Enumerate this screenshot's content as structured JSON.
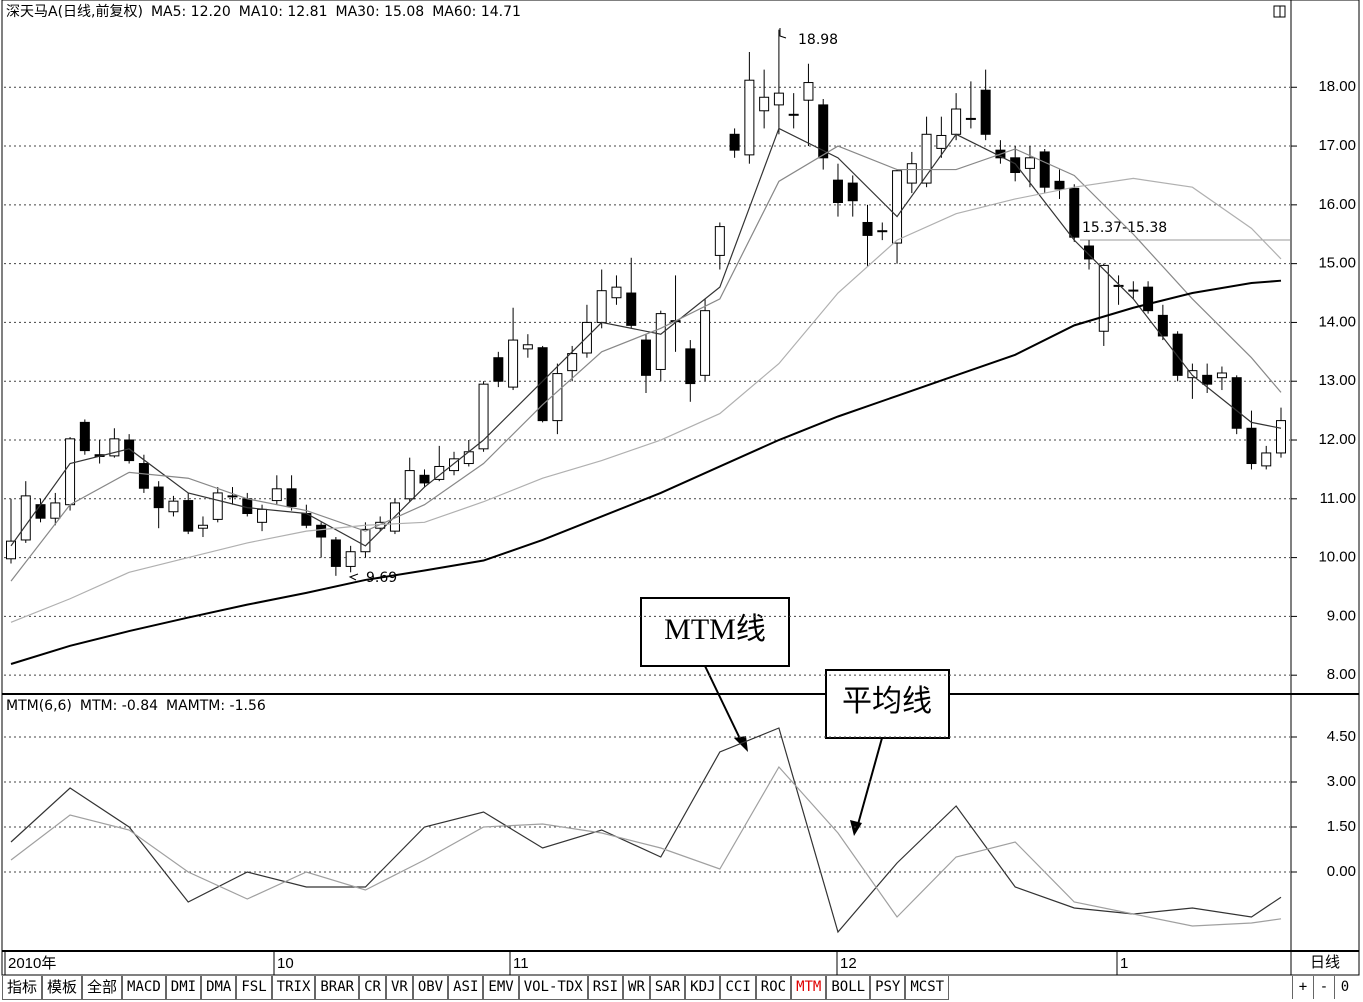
{
  "chart_data": [
    {
      "type": "candlestick",
      "title": "深天马A(日线,前复权)",
      "ylim": [
        7.68,
        19.11
      ],
      "yticks": [
        {
          "value": 8,
          "label": "8.00"
        },
        {
          "value": 9,
          "label": "9.00"
        },
        {
          "value": 10,
          "label": "10.00"
        },
        {
          "value": 11,
          "label": "11.00"
        },
        {
          "value": 12,
          "label": "12.00"
        },
        {
          "value": 13,
          "label": "13.00"
        },
        {
          "value": 14,
          "label": "14.00"
        },
        {
          "value": 15,
          "label": "15.00"
        },
        {
          "value": 16,
          "label": "16.00"
        },
        {
          "value": 17,
          "label": "17.00"
        },
        {
          "value": 18,
          "label": "18.00"
        }
      ],
      "grid": true,
      "candles": [
        [
          9.98,
          11.0,
          9.9,
          10.28
        ],
        [
          10.3,
          11.3,
          10.25,
          11.05
        ],
        [
          10.9,
          11.0,
          10.6,
          10.67
        ],
        [
          10.67,
          11.1,
          10.55,
          10.93
        ],
        [
          10.9,
          12.05,
          10.8,
          12.02
        ],
        [
          12.3,
          12.35,
          11.75,
          11.82
        ],
        [
          11.75,
          12.0,
          11.6,
          11.72
        ],
        [
          11.73,
          12.2,
          11.7,
          12.02
        ],
        [
          12.0,
          12.1,
          11.6,
          11.65
        ],
        [
          11.6,
          11.75,
          11.1,
          11.18
        ],
        [
          11.2,
          11.3,
          10.5,
          10.85
        ],
        [
          10.78,
          11.05,
          10.7,
          10.96
        ],
        [
          10.97,
          11.1,
          10.4,
          10.45
        ],
        [
          10.5,
          10.7,
          10.35,
          10.55
        ],
        [
          10.65,
          11.2,
          10.6,
          11.1
        ],
        [
          11.05,
          11.2,
          10.9,
          11.05
        ],
        [
          11.0,
          11.1,
          10.7,
          10.75
        ],
        [
          10.6,
          10.9,
          10.45,
          10.82
        ],
        [
          10.97,
          11.4,
          10.9,
          11.17
        ],
        [
          11.17,
          11.4,
          10.8,
          10.87
        ],
        [
          10.75,
          10.9,
          10.5,
          10.55
        ],
        [
          10.55,
          10.6,
          10.0,
          10.35
        ],
        [
          10.3,
          10.35,
          9.69,
          9.85
        ],
        [
          9.85,
          10.2,
          9.75,
          10.1
        ],
        [
          10.1,
          10.6,
          10.0,
          10.48
        ],
        [
          10.5,
          10.7,
          10.45,
          10.6
        ],
        [
          10.45,
          11.0,
          10.4,
          10.93
        ],
        [
          11.0,
          11.7,
          10.95,
          11.48
        ],
        [
          11.4,
          11.5,
          11.2,
          11.27
        ],
        [
          11.33,
          11.9,
          11.3,
          11.55
        ],
        [
          11.48,
          11.8,
          11.4,
          11.68
        ],
        [
          11.6,
          12.0,
          11.55,
          11.8
        ],
        [
          11.85,
          13.0,
          11.8,
          12.95
        ],
        [
          13.4,
          13.5,
          12.9,
          13.0
        ],
        [
          12.9,
          14.25,
          12.85,
          13.7
        ],
        [
          13.55,
          13.8,
          13.4,
          13.62
        ],
        [
          13.57,
          13.6,
          12.3,
          12.33
        ],
        [
          12.33,
          13.3,
          12.1,
          13.13
        ],
        [
          13.18,
          13.6,
          13.0,
          13.47
        ],
        [
          13.48,
          14.3,
          13.4,
          14.0
        ],
        [
          14.0,
          14.9,
          13.9,
          14.54
        ],
        [
          14.42,
          14.8,
          14.3,
          14.6
        ],
        [
          14.5,
          15.1,
          13.9,
          13.95
        ],
        [
          13.7,
          13.8,
          12.8,
          13.1
        ],
        [
          13.2,
          14.2,
          13.0,
          14.15
        ],
        [
          14.03,
          14.8,
          13.5,
          14.03
        ],
        [
          13.55,
          13.7,
          12.65,
          12.96
        ],
        [
          13.1,
          14.4,
          13.0,
          14.2
        ],
        [
          15.14,
          15.7,
          14.9,
          15.63
        ],
        [
          17.2,
          17.3,
          16.8,
          16.93
        ],
        [
          16.85,
          18.6,
          16.7,
          18.12
        ],
        [
          17.6,
          18.3,
          17.3,
          17.83
        ],
        [
          17.7,
          18.98,
          17.2,
          17.9
        ],
        [
          17.54,
          17.9,
          17.3,
          17.54
        ],
        [
          17.78,
          18.4,
          17.0,
          18.08
        ],
        [
          17.7,
          17.8,
          16.6,
          16.8
        ],
        [
          16.42,
          16.7,
          15.8,
          16.04
        ],
        [
          16.37,
          16.5,
          15.8,
          16.07
        ],
        [
          15.7,
          16.0,
          14.95,
          15.48
        ],
        [
          15.56,
          15.7,
          15.4,
          15.56
        ],
        [
          15.35,
          16.6,
          15.0,
          16.58
        ],
        [
          16.37,
          16.9,
          16.2,
          16.7
        ],
        [
          16.37,
          17.5,
          16.3,
          17.2
        ],
        [
          16.96,
          17.5,
          16.8,
          17.18
        ],
        [
          17.2,
          17.9,
          17.1,
          17.63
        ],
        [
          17.47,
          18.1,
          17.3,
          17.47
        ],
        [
          17.95,
          18.3,
          17.1,
          17.2
        ],
        [
          16.93,
          17.1,
          16.7,
          16.8
        ],
        [
          16.8,
          17.0,
          16.4,
          16.55
        ],
        [
          16.62,
          17.0,
          16.3,
          16.8
        ],
        [
          16.9,
          16.95,
          16.2,
          16.3
        ],
        [
          16.4,
          16.6,
          16.1,
          16.27
        ],
        [
          16.28,
          16.35,
          15.37,
          15.45
        ],
        [
          15.3,
          15.4,
          14.9,
          15.08
        ],
        [
          13.85,
          15.0,
          13.6,
          14.97
        ],
        [
          14.63,
          14.8,
          14.3,
          14.63
        ],
        [
          14.55,
          14.7,
          14.4,
          14.55
        ],
        [
          14.6,
          14.7,
          14.15,
          14.2
        ],
        [
          14.12,
          14.3,
          13.7,
          13.77
        ],
        [
          13.8,
          13.85,
          13.0,
          13.1
        ],
        [
          13.06,
          13.3,
          12.7,
          13.18
        ],
        [
          13.1,
          13.3,
          12.8,
          12.95
        ],
        [
          13.06,
          13.25,
          12.85,
          13.14
        ],
        [
          13.06,
          13.1,
          12.1,
          12.2
        ],
        [
          12.2,
          12.5,
          11.5,
          11.6
        ],
        [
          11.56,
          11.9,
          11.5,
          11.78
        ],
        [
          11.78,
          12.55,
          11.7,
          12.33
        ]
      ],
      "x": [
        0,
        4,
        8,
        12,
        16,
        20,
        24,
        28,
        32,
        36,
        40,
        44,
        48,
        52,
        56,
        60,
        64,
        68,
        72,
        76,
        80,
        84,
        86
      ],
      "series": [
        {
          "name": "MA5",
          "legend": "MA5: 12.20",
          "color": "#333333",
          "values": [
            10.2,
            11.6,
            11.85,
            11.1,
            10.85,
            10.75,
            10.2,
            11.2,
            12.0,
            13.0,
            14.0,
            13.8,
            14.6,
            17.3,
            16.8,
            15.8,
            17.2,
            16.7,
            15.4,
            14.4,
            13.1,
            12.3,
            12.2
          ]
        },
        {
          "name": "MA10",
          "legend": "MA10: 12.81",
          "color": "#888888",
          "values": [
            9.6,
            10.9,
            11.45,
            11.35,
            11.0,
            10.8,
            10.45,
            10.9,
            11.6,
            12.6,
            13.5,
            13.9,
            14.4,
            16.4,
            17.0,
            16.6,
            16.6,
            16.95,
            16.5,
            15.5,
            14.4,
            13.4,
            12.81
          ]
        },
        {
          "name": "MA30",
          "legend": "MA30: 15.08",
          "color": "#b0b0b0",
          "values": [
            8.9,
            9.3,
            9.75,
            10.0,
            10.25,
            10.45,
            10.55,
            10.6,
            10.95,
            11.35,
            11.65,
            12.0,
            12.45,
            13.3,
            14.5,
            15.4,
            15.85,
            16.1,
            16.3,
            16.45,
            16.3,
            15.6,
            15.08
          ]
        },
        {
          "name": "MA60",
          "legend": "MA60: 14.71",
          "color": "#000000",
          "values": [
            8.19,
            8.5,
            8.75,
            8.98,
            9.2,
            9.4,
            9.62,
            9.78,
            9.95,
            10.3,
            10.7,
            11.1,
            11.55,
            12.0,
            12.4,
            12.75,
            13.1,
            13.45,
            13.95,
            14.25,
            14.5,
            14.67,
            14.71
          ]
        }
      ],
      "annotations": [
        "18.98",
        "9.69",
        "15.37-15.38"
      ]
    },
    {
      "type": "line",
      "title": "MTM(6,6)",
      "ylim": [
        -2.6,
        5.9
      ],
      "yticks": [
        {
          "value": 0,
          "label": "0.00"
        },
        {
          "value": 1.5,
          "label": "1.50"
        },
        {
          "value": 3,
          "label": "3.00"
        },
        {
          "value": 4.5,
          "label": "4.50"
        }
      ],
      "grid": true,
      "x": [
        0,
        4,
        8,
        12,
        16,
        20,
        24,
        28,
        32,
        36,
        40,
        44,
        48,
        52,
        56,
        60,
        64,
        68,
        72,
        76,
        80,
        84,
        86
      ],
      "series": [
        {
          "name": "MTM",
          "legend": "MTM: -0.84",
          "color": "#333333",
          "values": [
            1.0,
            2.8,
            1.5,
            -1.0,
            0.0,
            -0.5,
            -0.5,
            1.5,
            2.0,
            0.8,
            1.4,
            0.5,
            4.0,
            4.8,
            -2.0,
            0.3,
            2.2,
            -0.5,
            -1.2,
            -1.4,
            -1.2,
            -1.5,
            -0.84
          ]
        },
        {
          "name": "MAMTM",
          "legend": "MAMTM: -1.56",
          "color": "#a0a0a0",
          "values": [
            0.4,
            1.9,
            1.4,
            0.0,
            -0.9,
            0.0,
            -0.6,
            0.4,
            1.5,
            1.6,
            1.3,
            0.8,
            0.1,
            3.5,
            1.3,
            -1.5,
            0.5,
            1.0,
            -1.0,
            -1.4,
            -1.8,
            -1.7,
            -1.56
          ]
        }
      ]
    }
  ],
  "date_labels": [
    "2010年",
    "10",
    "11",
    "12",
    "1"
  ],
  "period": "日线",
  "callouts": [
    "MTM线",
    "平均线"
  ],
  "tabs": [
    "指标",
    "模板",
    "全部",
    "MACD",
    "DMI",
    "DMA",
    "FSL",
    "TRIX",
    "BRAR",
    "CR",
    "VR",
    "OBV",
    "ASI",
    "EMV",
    "VOL-TDX",
    "RSI",
    "WR",
    "SAR",
    "KDJ",
    "CCI",
    "ROC",
    "MTM",
    "BOLL",
    "PSY",
    "MCST"
  ],
  "active_tab": 21,
  "buttons": [
    "+",
    "-",
    "0"
  ]
}
